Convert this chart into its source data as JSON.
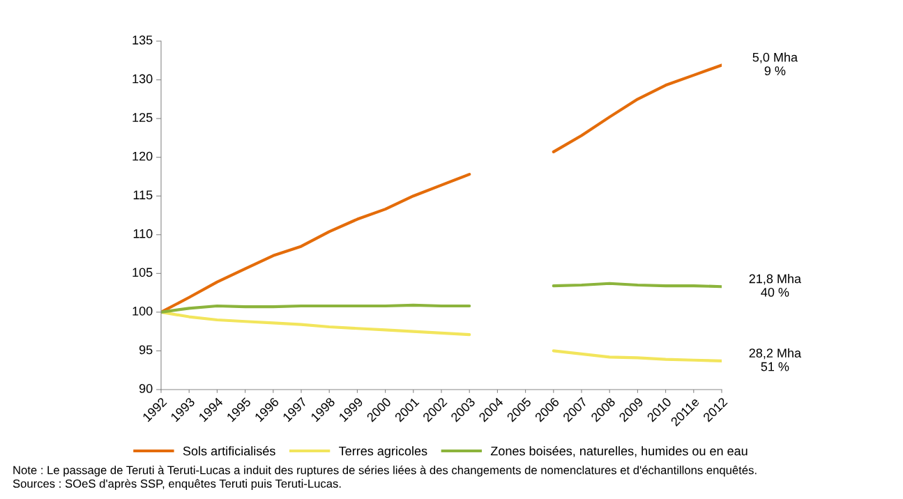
{
  "chart_data": {
    "type": "line",
    "categories": [
      "1992",
      "1993",
      "1994",
      "1995",
      "1996",
      "1997",
      "1998",
      "1999",
      "2000",
      "2001",
      "2002",
      "2003",
      "2004",
      "2005",
      "2006",
      "2007",
      "2008",
      "2009",
      "2010",
      "2011e",
      "2012"
    ],
    "series": [
      {
        "name": "Sols artificialisés",
        "color": "#e46c0a",
        "values": [
          100,
          101.9,
          103.9,
          105.6,
          107.3,
          108.5,
          110.4,
          112.0,
          113.3,
          115.0,
          116.4,
          117.8,
          null,
          null,
          120.7,
          122.8,
          125.2,
          127.5,
          129.3,
          130.6,
          131.9
        ]
      },
      {
        "name": "Terres agricoles",
        "color": "#f2e55c",
        "values": [
          100,
          99.4,
          99.0,
          98.8,
          98.6,
          98.4,
          98.1,
          97.9,
          97.7,
          97.5,
          97.3,
          97.1,
          null,
          null,
          95.0,
          94.6,
          94.2,
          94.1,
          93.9,
          93.8,
          93.7
        ]
      },
      {
        "name": "Zones boisées, naturelles, humides ou en eau",
        "color": "#8cb43c",
        "values": [
          100,
          100.5,
          100.8,
          100.7,
          100.7,
          100.8,
          100.8,
          100.8,
          100.8,
          100.9,
          100.8,
          100.8,
          null,
          null,
          103.4,
          103.5,
          103.7,
          103.5,
          103.4,
          103.4,
          103.3
        ]
      }
    ],
    "ylim": [
      90,
      135
    ],
    "yticks": [
      90,
      95,
      100,
      105,
      110,
      115,
      120,
      125,
      130,
      135
    ],
    "grid": false,
    "legend": "bottom",
    "marker": "none",
    "line_style": "solid",
    "annotations": [
      {
        "text": "5,0 Mha\n9 %",
        "x": "2012",
        "y": 131.9
      },
      {
        "text": "21,8 Mha\n40 %",
        "x": "2012",
        "y": 103.3
      },
      {
        "text": "28,2 Mha\n51 %",
        "x": "2012",
        "y": 93.7
      },
      "Note : Le passage de Teruti à Teruti-Lucas a induit des ruptures de séries liées à des changements de nomenclatures et d'échantillons enquêtés.",
      "Sources : SOeS d'après SSP, enquêtes Teruti puis Teruti-Lucas."
    ]
  }
}
